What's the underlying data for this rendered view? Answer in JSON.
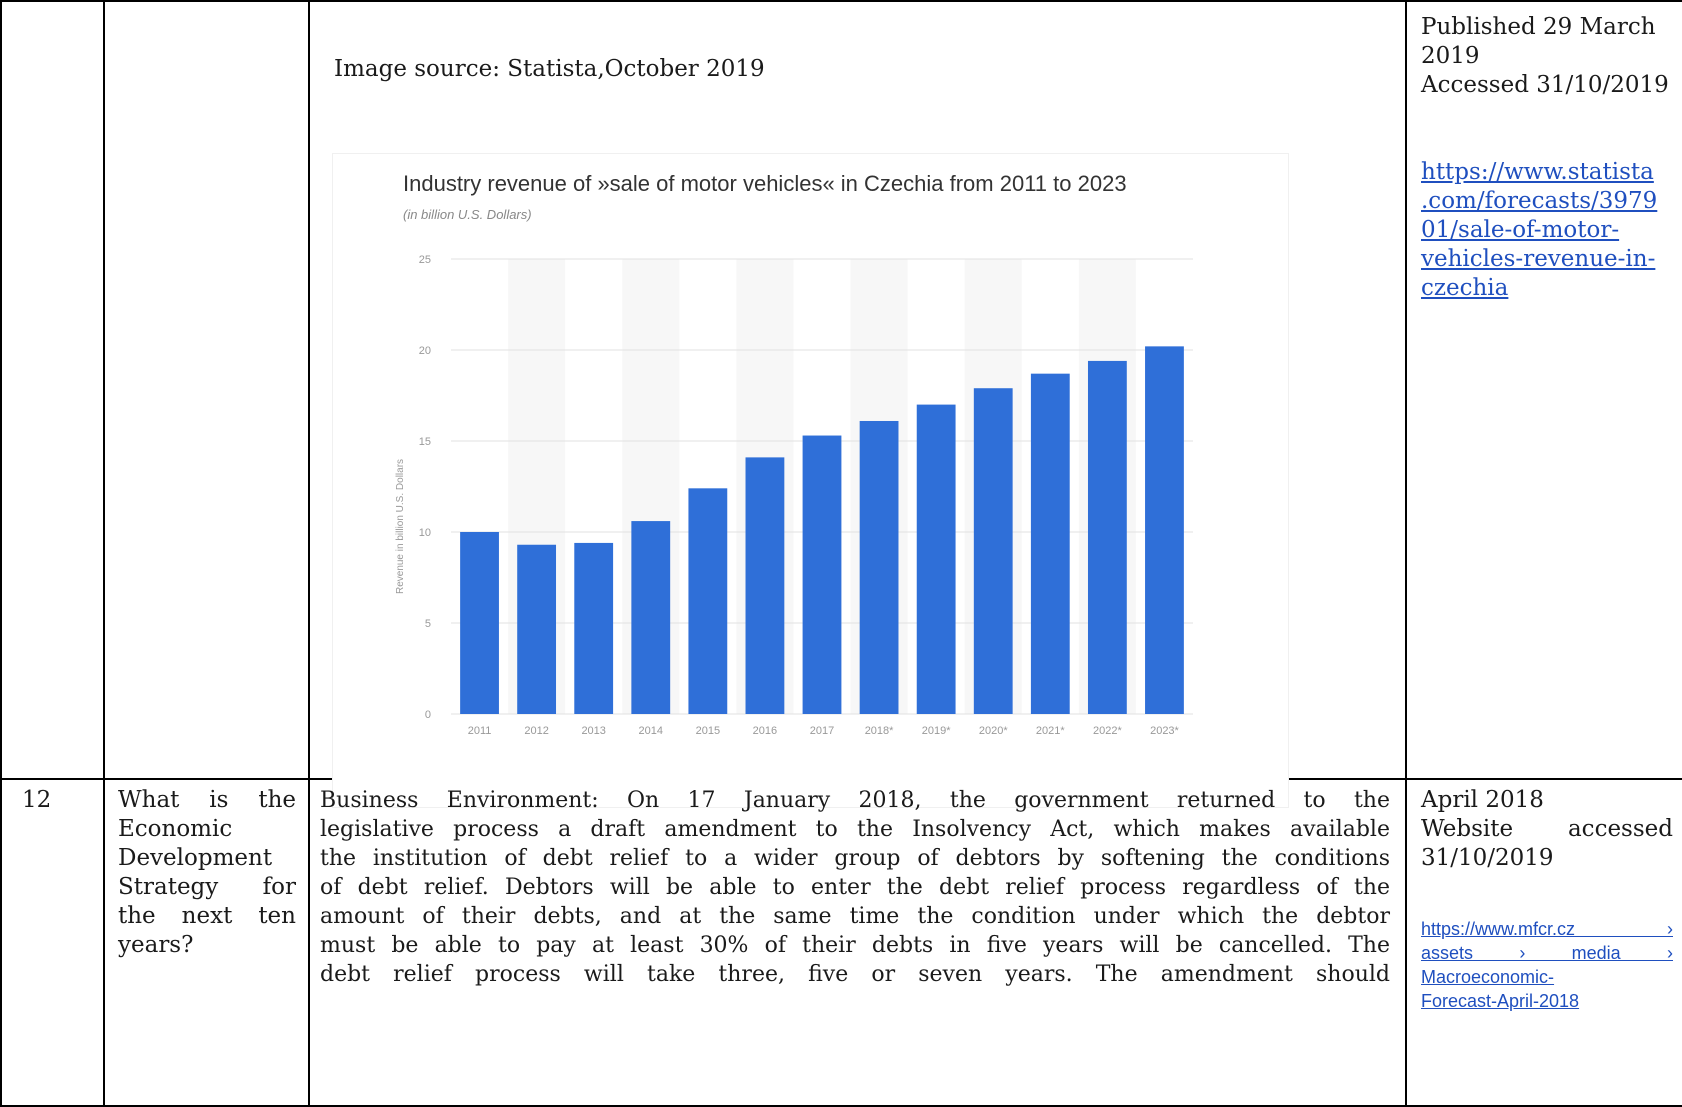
{
  "top_row": {
    "image_source": "Image source: Statista,October 2019",
    "published_lines": [
      "Published 29 March",
      "2019",
      "Accessed 31/10/2019"
    ],
    "link_lines": [
      "https://www.statista",
      ".com/forecasts/3979",
      "01/sale-of-motor-",
      "vehicles-revenue-in-",
      "czechia"
    ]
  },
  "row12": {
    "number": "12",
    "question_lines": [
      "What is the",
      "Economic",
      "Development",
      "Strategy for",
      "the next ten",
      "years?"
    ],
    "body_lines": [
      "Business Environment: On 17 January 2018, the government returned to the",
      "legislative process a draft amendment to the Insolvency Act, which makes available",
      "the institution of debt relief to a wider group of debtors by softening the conditions",
      "of debt relief. Debtors will be able to enter the debt relief process regardless of the",
      "amount of their debts, and at the same time the condition under which the debtor",
      "must be able to pay at least 30% of their debts in five years will be cancelled. The",
      "debt relief process will take three, five or seven years. The amendment should"
    ],
    "date_lines": [
      "April 2018",
      "Website accessed",
      "31/10/2019"
    ],
    "link_lines": [
      "https://www.mfcr.cz ›",
      "assets › media ›",
      "Macroeconomic-",
      "Forecast-April-2018"
    ]
  },
  "chart_data": {
    "type": "bar",
    "title": "Industry revenue of »sale of motor vehicles« in Czechia from 2011 to 2023",
    "subtitle": "(in billion U.S. Dollars)",
    "ylabel": "Revenue in billion U.S. Dollars",
    "categories": [
      "2011",
      "2012",
      "2013",
      "2014",
      "2015",
      "2016",
      "2017",
      "2018*",
      "2019*",
      "2020*",
      "2021*",
      "2022*",
      "2023*"
    ],
    "values": [
      10.0,
      9.3,
      9.4,
      10.6,
      12.4,
      14.1,
      15.3,
      16.1,
      17.0,
      17.9,
      18.7,
      19.4,
      20.2
    ],
    "yticks": [
      "0",
      "5",
      "10",
      "15",
      "20",
      "25"
    ],
    "ylim": [
      0,
      25
    ],
    "bar_color": "#2f6fd8",
    "grid": true
  }
}
